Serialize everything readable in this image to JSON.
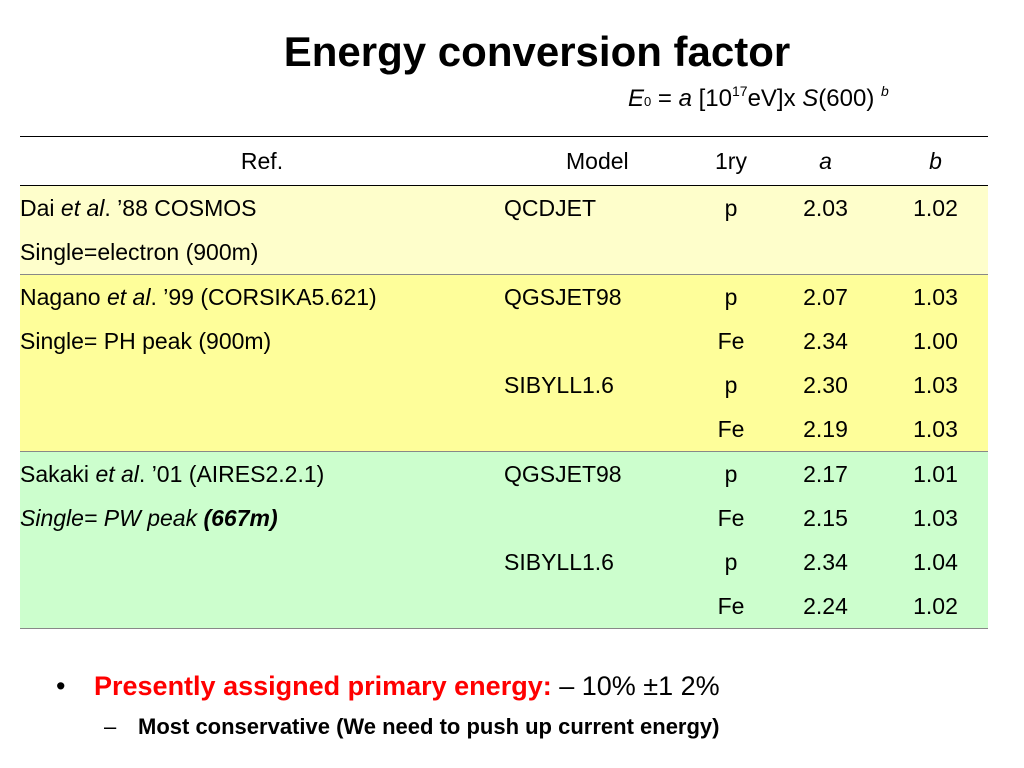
{
  "title": "Energy conversion factor",
  "formula": {
    "e": "E",
    "e_sub": "0",
    "eq": " = ",
    "a": "a",
    "bracket_pre": " [10",
    "exp": "17",
    "bracket_post": "eV]x ",
    "s": "S",
    "s_arg": "(600) ",
    "b": "b"
  },
  "table": {
    "headers": {
      "ref": "Ref.",
      "model": "Model",
      "primary": "1ry",
      "a": "a",
      "b": "b"
    },
    "group1": {
      "ref1_pre": "Dai ",
      "ref1_it": "et al",
      "ref1_post": ". ’88 COSMOS",
      "ref2": "Single=electron (900m)",
      "model": "QCDJET",
      "primary": "p",
      "a": "2.03",
      "b": "1.02"
    },
    "group2": {
      "ref1_pre": "Nagano ",
      "ref1_it": "et al",
      "ref1_post": ". ’99 (CORSIKA5.621)",
      "ref2": "Single= PH peak (900m)",
      "rows": [
        {
          "model": "QGSJET98",
          "primary": "p",
          "a": "2.07",
          "b": "1.03"
        },
        {
          "model": "",
          "primary": "Fe",
          "a": "2.34",
          "b": "1.00"
        },
        {
          "model": "SIBYLL1.6",
          "primary": "p",
          "a": "2.30",
          "b": "1.03"
        },
        {
          "model": "",
          "primary": "Fe",
          "a": "2.19",
          "b": "1.03"
        }
      ]
    },
    "group3": {
      "ref1_pre": "Sakaki ",
      "ref1_it": "et al",
      "ref1_post": ". ’01 (AIRES2.2.1)",
      "ref2_it": "Single= PW peak ",
      "ref2_bold": "(667m)",
      "rows": [
        {
          "model": "QGSJET98",
          "primary": "p",
          "a": "2.17",
          "b": "1.01"
        },
        {
          "model": "",
          "primary": "Fe",
          "a": "2.15",
          "b": "1.03"
        },
        {
          "model": "SIBYLL1.6",
          "primary": "p",
          "a": "2.34",
          "b": "1.04"
        },
        {
          "model": "",
          "primary": "Fe",
          "a": "2.24",
          "b": "1.02"
        }
      ]
    }
  },
  "bullets": {
    "b1_marker": "•",
    "b1_red": "Presently assigned primary energy:",
    "b1_rest": "  – 10% ±1 2%",
    "b2_marker": "–",
    "b2_text": "Most conservative (We need to push up current energy)"
  },
  "colors": {
    "group1_bg": "#fefecb",
    "group2_bg": "#fefe9a",
    "group3_bg": "#ccfecd",
    "highlight_red": "#ff0000"
  }
}
